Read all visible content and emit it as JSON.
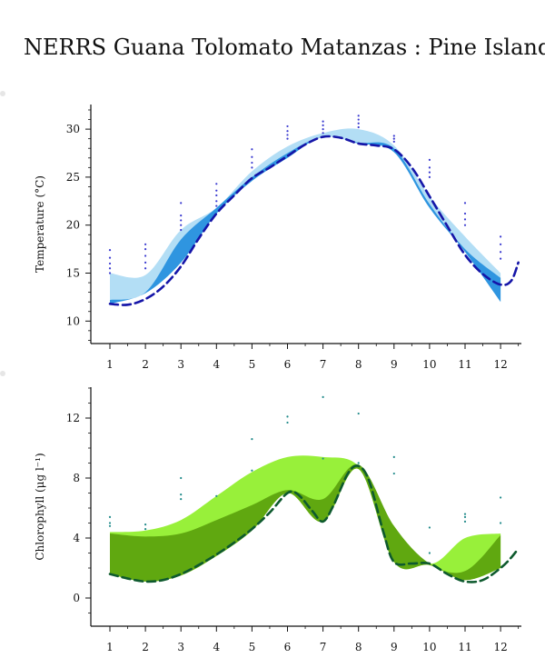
{
  "page": {
    "title": "NERRS Guana Tolomato Matanzas : Pine Island"
  },
  "chart_data": [
    {
      "type": "area",
      "ylabel": "Temperature (°C)",
      "xlim": [
        0.5,
        12.5
      ],
      "ylim": [
        8,
        33
      ],
      "x_ticks": [
        1,
        2,
        3,
        4,
        5,
        6,
        7,
        8,
        9,
        10,
        11,
        12
      ],
      "y_ticks": [
        10,
        15,
        20,
        25,
        30
      ],
      "colors": {
        "upper_band": "#b3def5",
        "lower_band": "#2f95e0",
        "line": "#1515a8",
        "points": "#3a3ad0"
      },
      "bands": [
        {
          "color": "#b3def5",
          "x": [
            1,
            2,
            3,
            4,
            5,
            6,
            7,
            8,
            9,
            10,
            11,
            12
          ],
          "upper": [
            15.0,
            14.8,
            19.5,
            21.8,
            25.6,
            28.2,
            29.6,
            30.0,
            28.3,
            23.0,
            18.8,
            15.0
          ],
          "lower": [
            11.8,
            12.9,
            16.1,
            21.2,
            24.6,
            27.0,
            29.2,
            28.5,
            27.6,
            21.8,
            17.2,
            12.0
          ]
        },
        {
          "color": "#2f95e0",
          "x": [
            1,
            2,
            3,
            4,
            5,
            6,
            7,
            8,
            9,
            10,
            11,
            12
          ],
          "upper": [
            12.2,
            13.0,
            18.5,
            21.8,
            25.0,
            27.5,
            29.2,
            28.6,
            28.0,
            22.2,
            17.5,
            14.5
          ],
          "lower": [
            11.8,
            12.9,
            16.1,
            21.2,
            24.6,
            27.0,
            29.2,
            28.5,
            27.6,
            21.8,
            17.2,
            12.0
          ]
        }
      ],
      "line": {
        "style": "dashed",
        "x": [
          1,
          1.5,
          2,
          2.5,
          3,
          3.5,
          4,
          4.5,
          5,
          5.5,
          6,
          6.5,
          7,
          7.5,
          8,
          8.5,
          9,
          9.5,
          10,
          10.5,
          11,
          11.5,
          12,
          12.3,
          12.5
        ],
        "y": [
          11.8,
          11.7,
          12.3,
          13.6,
          15.7,
          18.6,
          21.2,
          23.1,
          24.9,
          26.0,
          27.2,
          28.4,
          29.2,
          29.1,
          28.5,
          28.3,
          27.9,
          26.0,
          23.0,
          19.9,
          16.9,
          14.9,
          13.8,
          14.2,
          16.1
        ]
      },
      "points": [
        {
          "x": 1,
          "y": [
            15.0,
            15.5,
            16.0,
            16.6,
            17.4
          ]
        },
        {
          "x": 2,
          "y": [
            15.5,
            16.1,
            16.8,
            17.5,
            18.0
          ]
        },
        {
          "x": 3,
          "y": [
            19.5,
            20.0,
            20.5,
            21.0,
            22.3
          ]
        },
        {
          "x": 4,
          "y": [
            22.0,
            22.5,
            23.1,
            23.6,
            24.3
          ]
        },
        {
          "x": 5,
          "y": [
            26.0,
            26.5,
            27.1,
            27.9
          ]
        },
        {
          "x": 6,
          "y": [
            29.0,
            29.4,
            29.8,
            30.3
          ]
        },
        {
          "x": 7,
          "y": [
            29.6,
            30.0,
            30.4,
            30.8
          ]
        },
        {
          "x": 8,
          "y": [
            30.2,
            30.6,
            31.0,
            31.4
          ]
        },
        {
          "x": 9,
          "y": [
            28.7,
            29.0,
            29.3
          ]
        },
        {
          "x": 10,
          "y": [
            25.0,
            25.5,
            26.0,
            26.8
          ]
        },
        {
          "x": 11,
          "y": [
            20.0,
            20.6,
            21.2,
            22.3
          ]
        },
        {
          "x": 12,
          "y": [
            16.5,
            17.2,
            18.0,
            18.8
          ]
        }
      ]
    },
    {
      "type": "area",
      "ylabel": "Chlorophyll (μg l⁻¹)",
      "xlim": [
        0.5,
        12.5
      ],
      "ylim": [
        -2,
        14
      ],
      "x_ticks": [
        1,
        2,
        3,
        4,
        5,
        6,
        7,
        8,
        9,
        10,
        11,
        12
      ],
      "y_ticks": [
        0,
        4,
        8,
        12
      ],
      "colors": {
        "upper_band": "#98f03a",
        "lower_band": "#60a810",
        "line": "#0e5a2e",
        "points": "#1f8a8a"
      },
      "bands": [
        {
          "color": "#98f03a",
          "x": [
            1,
            2,
            3,
            4,
            5,
            6,
            7,
            8,
            9,
            10,
            11,
            12
          ],
          "upper": [
            4.4,
            4.5,
            5.2,
            6.8,
            8.4,
            9.4,
            9.4,
            8.8,
            4.8,
            2.3,
            4.0,
            4.3
          ],
          "lower": [
            1.6,
            1.1,
            1.5,
            2.8,
            4.5,
            7.0,
            5.1,
            8.6,
            2.4,
            2.2,
            1.2,
            2.0
          ]
        },
        {
          "color": "#60a810",
          "x": [
            1,
            2,
            3,
            4,
            5,
            6,
            7,
            8,
            9,
            10,
            11,
            12
          ],
          "upper": [
            4.3,
            4.1,
            4.3,
            5.2,
            6.2,
            7.2,
            6.6,
            8.9,
            4.8,
            2.3,
            1.8,
            4.2
          ],
          "lower": [
            1.6,
            1.1,
            1.5,
            2.8,
            4.5,
            7.0,
            5.1,
            8.6,
            2.4,
            2.2,
            1.2,
            2.0
          ]
        }
      ],
      "line": {
        "style": "dashed",
        "x": [
          1,
          1.5,
          2,
          2.5,
          3,
          3.5,
          4,
          4.5,
          5,
          5.5,
          6,
          6.3,
          6.7,
          7,
          7.3,
          7.7,
          8,
          8.3,
          8.7,
          9,
          9.5,
          10,
          10.5,
          11,
          11.5,
          12,
          12.3,
          12.5
        ],
        "y": [
          1.6,
          1.3,
          1.1,
          1.2,
          1.6,
          2.2,
          2.9,
          3.7,
          4.6,
          5.7,
          7.0,
          6.9,
          5.8,
          5.1,
          6.2,
          8.3,
          8.8,
          7.8,
          4.4,
          2.4,
          2.3,
          2.3,
          1.6,
          1.1,
          1.2,
          2.0,
          2.7,
          3.3
        ]
      },
      "points": [
        {
          "x": 1,
          "y": [
            5.4,
            5.0,
            4.8
          ]
        },
        {
          "x": 2,
          "y": [
            4.6,
            4.9
          ]
        },
        {
          "x": 3,
          "y": [
            6.6,
            6.9,
            8.0
          ]
        },
        {
          "x": 4,
          "y": [
            6.8
          ]
        },
        {
          "x": 5,
          "y": [
            8.5,
            10.6
          ]
        },
        {
          "x": 6,
          "y": [
            11.7,
            12.1
          ]
        },
        {
          "x": 7,
          "y": [
            9.3,
            13.4
          ]
        },
        {
          "x": 8,
          "y": [
            9.0,
            12.3
          ]
        },
        {
          "x": 9,
          "y": [
            8.3,
            9.4
          ]
        },
        {
          "x": 10,
          "y": [
            3.0,
            4.7
          ]
        },
        {
          "x": 11,
          "y": [
            5.1,
            5.4,
            5.6
          ]
        },
        {
          "x": 12,
          "y": [
            5.0,
            6.7
          ]
        }
      ]
    }
  ]
}
